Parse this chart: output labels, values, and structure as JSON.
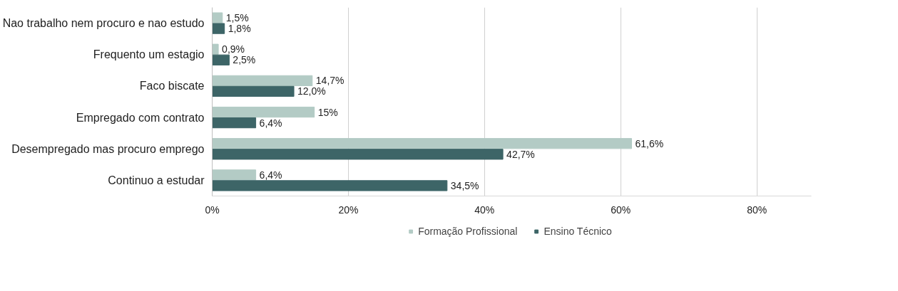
{
  "chart_data": {
    "type": "bar",
    "orientation": "horizontal",
    "categories": [
      "Nao trabalho nem procuro e nao estudo",
      "Frequento um estagio",
      "Faco biscate",
      "Empregado com contrato",
      "Desempregado mas procuro emprego",
      "Continuo a estudar"
    ],
    "series": [
      {
        "name": "Formação Profissional",
        "color": "#b3cbc5",
        "values": [
          1.5,
          0.9,
          14.7,
          15,
          61.6,
          6.4
        ],
        "value_labels": [
          "1,5%",
          "0,9%",
          "14,7%",
          "15%",
          "61,6%",
          "6,4%"
        ]
      },
      {
        "name": "Ensino Técnico",
        "color": "#3d6567",
        "values": [
          1.8,
          2.5,
          12.0,
          6.4,
          42.7,
          34.5
        ],
        "value_labels": [
          "1,8%",
          "2,5%",
          "12,0%",
          "6,4%",
          "42,7%",
          "34,5%"
        ]
      }
    ],
    "xlim": [
      0,
      88
    ],
    "xticks": [
      {
        "value": 0,
        "label": "0%"
      },
      {
        "value": 20,
        "label": "20%"
      },
      {
        "value": 40,
        "label": "40%"
      },
      {
        "value": 60,
        "label": "60%"
      },
      {
        "value": 80,
        "label": "80%"
      }
    ],
    "grid": "x",
    "legend": "bottom"
  }
}
